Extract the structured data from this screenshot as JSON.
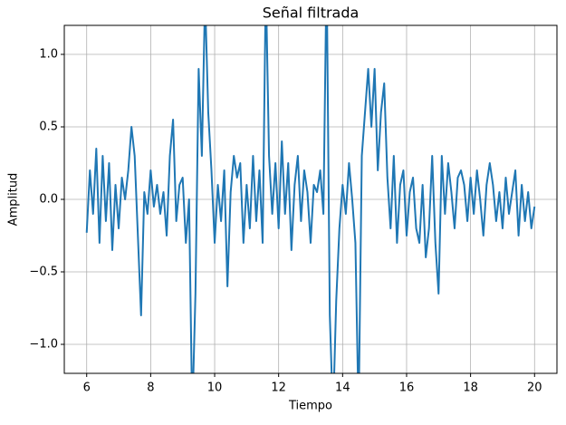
{
  "chart_data": {
    "type": "line",
    "title": "Señal filtrada",
    "x_label": "Tiempo",
    "y_label": "Amplitud",
    "x": [
      6.0,
      6.1,
      6.2,
      6.3,
      6.4,
      6.5,
      6.6,
      6.7,
      6.8,
      6.9,
      7.0,
      7.1,
      7.2,
      7.3,
      7.4,
      7.5,
      7.6,
      7.7,
      7.8,
      7.9,
      8.0,
      8.1,
      8.2,
      8.3,
      8.4,
      8.5,
      8.6,
      8.7,
      8.8,
      8.9,
      9.0,
      9.1,
      9.2,
      9.3,
      9.4,
      9.5,
      9.6,
      9.7,
      9.8,
      9.9,
      10.0,
      10.1,
      10.2,
      10.3,
      10.4,
      10.5,
      10.6,
      10.7,
      10.8,
      10.9,
      11.0,
      11.1,
      11.2,
      11.3,
      11.4,
      11.5,
      11.6,
      11.7,
      11.8,
      11.9,
      12.0,
      12.1,
      12.2,
      12.3,
      12.4,
      12.5,
      12.6,
      12.7,
      12.8,
      12.9,
      13.0,
      13.1,
      13.2,
      13.3,
      13.4,
      13.5,
      13.6,
      13.7,
      13.8,
      13.9,
      14.0,
      14.1,
      14.2,
      14.3,
      14.4,
      14.5,
      14.6,
      14.7,
      14.8,
      14.9,
      15.0,
      15.1,
      15.2,
      15.3,
      15.4,
      15.5,
      15.6,
      15.7,
      15.8,
      15.9,
      16.0,
      16.1,
      16.2,
      16.3,
      16.4,
      16.5,
      16.6,
      16.7,
      16.8,
      16.9,
      17.0,
      17.1,
      17.2,
      17.3,
      17.4,
      17.5,
      17.6,
      17.7,
      17.8,
      17.9,
      18.0,
      18.1,
      18.2,
      18.3,
      18.4,
      18.5,
      18.6,
      18.7,
      18.8,
      18.9,
      19.0,
      19.1,
      19.2,
      19.3,
      19.4,
      19.5,
      19.6,
      19.7,
      19.8,
      19.9,
      20.0
    ],
    "values": [
      -0.23,
      0.2,
      -0.1,
      0.35,
      -0.3,
      0.3,
      -0.15,
      0.25,
      -0.35,
      0.1,
      -0.2,
      0.15,
      0.0,
      0.2,
      0.5,
      0.3,
      -0.25,
      -0.8,
      0.05,
      -0.1,
      0.2,
      -0.05,
      0.1,
      -0.1,
      0.05,
      -0.25,
      0.3,
      0.55,
      -0.15,
      0.1,
      0.15,
      -0.3,
      0.0,
      -1.5,
      -0.65,
      0.9,
      0.3,
      1.4,
      0.6,
      0.2,
      -0.3,
      0.1,
      -0.15,
      0.2,
      -0.6,
      0.05,
      0.3,
      0.15,
      0.25,
      -0.3,
      0.1,
      -0.2,
      0.3,
      -0.15,
      0.2,
      -0.3,
      1.5,
      0.3,
      -0.1,
      0.25,
      -0.2,
      0.4,
      -0.1,
      0.25,
      -0.35,
      0.1,
      0.3,
      -0.15,
      0.2,
      0.05,
      -0.3,
      0.1,
      0.05,
      0.2,
      -0.1,
      1.6,
      -0.8,
      -1.5,
      -0.7,
      -0.2,
      0.1,
      -0.1,
      0.25,
      0.0,
      -0.3,
      -1.5,
      0.3,
      0.6,
      0.9,
      0.5,
      0.9,
      0.2,
      0.6,
      0.8,
      0.15,
      -0.2,
      0.3,
      -0.3,
      0.1,
      0.2,
      -0.25,
      0.05,
      0.15,
      -0.2,
      -0.3,
      0.1,
      -0.4,
      -0.2,
      0.3,
      -0.3,
      -0.65,
      0.3,
      -0.1,
      0.25,
      0.05,
      -0.2,
      0.15,
      0.2,
      0.1,
      -0.15,
      0.15,
      -0.1,
      0.2,
      0.0,
      -0.25,
      0.1,
      0.25,
      0.1,
      -0.15,
      0.05,
      -0.2,
      0.15,
      -0.1,
      0.05,
      0.2,
      -0.25,
      0.1,
      -0.15,
      0.05,
      -0.2,
      -0.05
    ],
    "color": "#1f77b4",
    "grid": true,
    "xlim": [
      5.3,
      20.7
    ],
    "xticks": [
      6,
      8,
      10,
      12,
      14,
      16,
      18,
      20
    ],
    "ylim": [
      -1.2,
      1.2
    ],
    "yticks": [
      {
        "value": -1,
        "label": "−1.0"
      },
      {
        "value": -0.5,
        "label": "−0.5"
      },
      {
        "value": 0,
        "label": "0.0"
      },
      0.5,
      {
        "value": 1,
        "label": "1.0"
      }
    ]
  }
}
